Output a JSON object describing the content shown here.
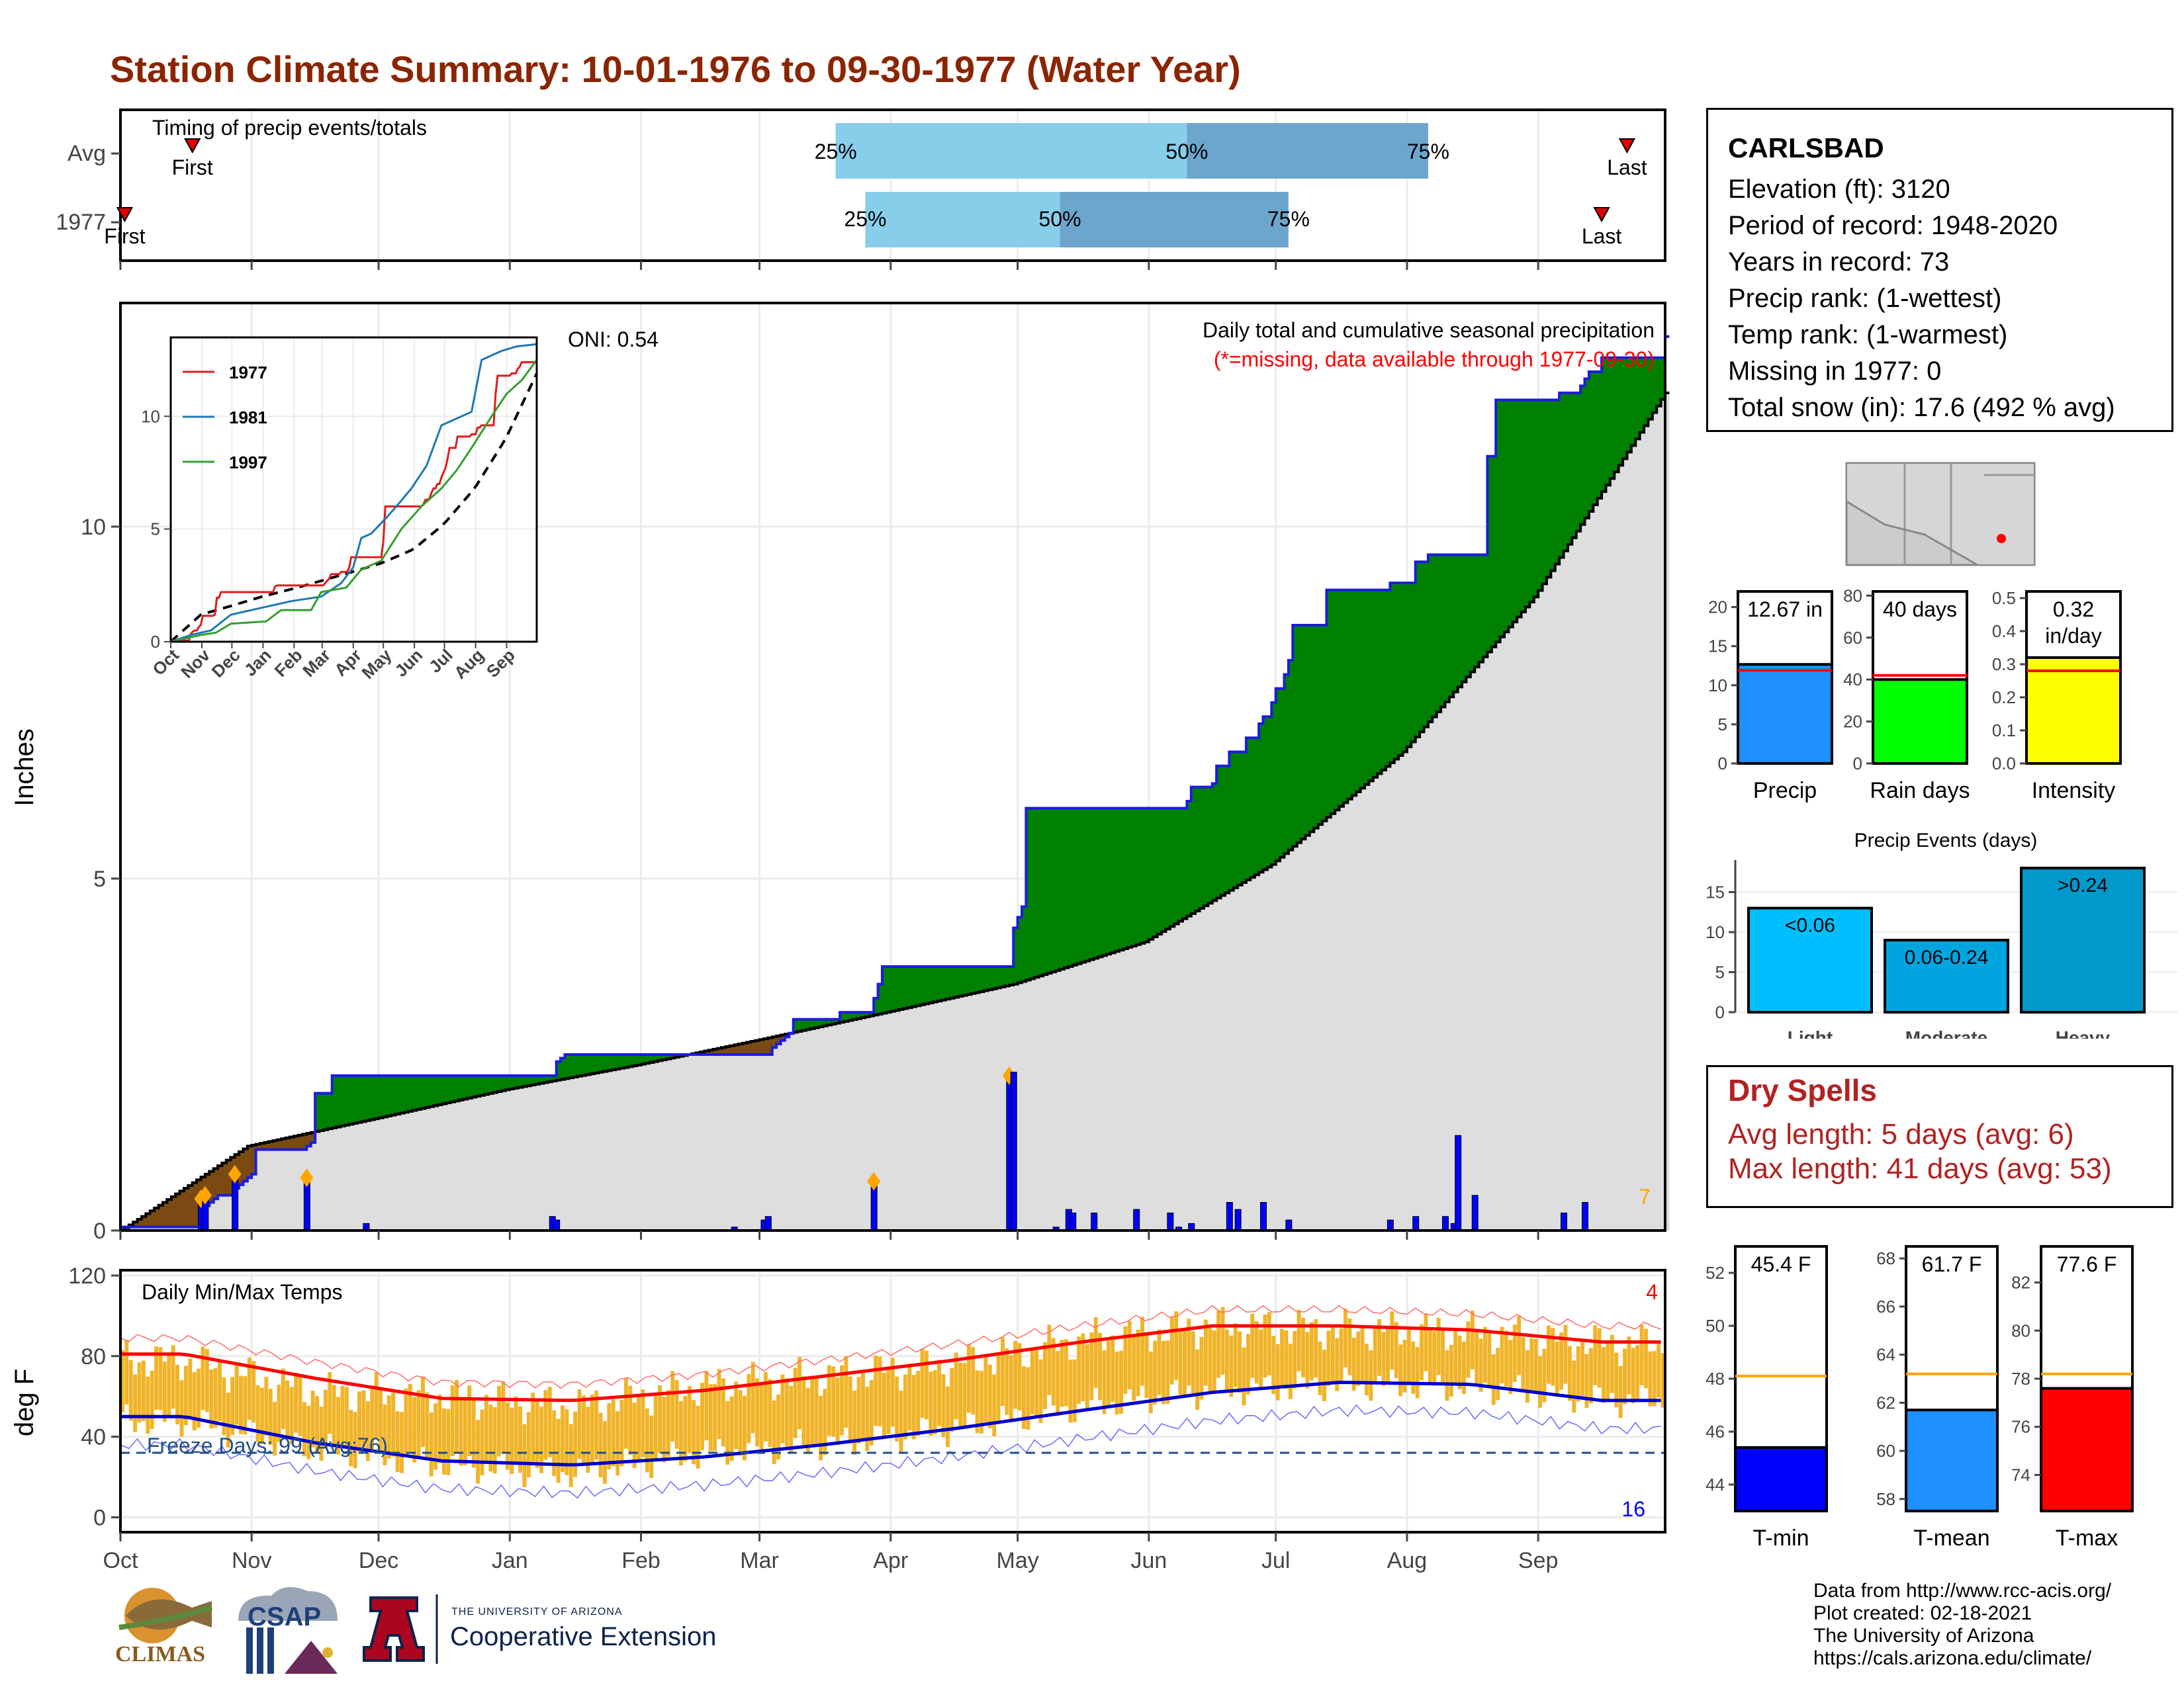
{
  "title": "Station Climate Summary: 10-01-1976 to 09-30-1977 (Water Year)",
  "timing": {
    "heading": "Timing of precip events/totals",
    "rows": [
      "Avg",
      "1977"
    ],
    "avg": {
      "first_label": "First",
      "last_label": "Last",
      "first_day": 17,
      "last_day": 356,
      "p25_day": 169,
      "p50_day": 252,
      "p75_day": 309
    },
    "year": {
      "first_label": "First",
      "last_label": "Last",
      "first_day": 1,
      "last_day": 350,
      "p25_day": 176,
      "p50_day": 222,
      "p75_day": 276
    },
    "pct_labels": [
      "25%",
      "50%",
      "75%"
    ]
  },
  "station": {
    "name": "CARLSBAD",
    "lines": [
      "Elevation (ft): 3120",
      "Period of record: 1948-2020",
      "Years in record: 73",
      "Precip rank:  (1-wettest)",
      "Temp rank:  (1-warmest)",
      "Missing in 1977: 0",
      "Total snow (in): 17.6 (492 % avg)"
    ]
  },
  "main": {
    "annotation_title": "Daily total and cumulative seasonal precipitation",
    "annotation_note": "(*=missing, data available through 1977-09-30)",
    "oni": "ONI: 0.54",
    "ylabel": "Inches",
    "corner_count": "7",
    "yticks": [
      "0",
      "5",
      "10"
    ]
  },
  "inset": {
    "legend": [
      "1977",
      "1981",
      "1997"
    ],
    "colors": [
      "#e31a1c",
      "#1f78b4",
      "#33a02c"
    ],
    "yticks": [
      "0",
      "5",
      "10"
    ],
    "xticks": [
      "Oct",
      "Nov",
      "Dec",
      "Jan",
      "Feb",
      "Mar",
      "Apr",
      "May",
      "Jun",
      "Jul",
      "Aug",
      "Sep"
    ]
  },
  "temps": {
    "heading": "Daily Min/Max Temps",
    "ylabel": "deg F",
    "freeze_label": "Freeze Days: 99 (Avg:76)",
    "hot_count": "4",
    "cold_count": "16",
    "yticks": [
      "0",
      "40",
      "80",
      "120"
    ]
  },
  "months": [
    "Oct",
    "Nov",
    "Dec",
    "Jan",
    "Feb",
    "Mar",
    "Apr",
    "May",
    "Jun",
    "Jul",
    "Aug",
    "Sep"
  ],
  "bars": {
    "precip": {
      "label": "Precip",
      "value_label": "12.67 in",
      "value": 12.67,
      "avg": 11.9,
      "ymax": 22,
      "yticks": [
        "0",
        "5",
        "10",
        "15",
        "20"
      ],
      "color": "#1E90FF"
    },
    "raindays": {
      "label": "Rain days",
      "value_label": "40 days",
      "value": 40,
      "avg": 42,
      "ymax": 82,
      "yticks": [
        "0",
        "20",
        "40",
        "60",
        "80"
      ],
      "color": "#00FF00"
    },
    "intensity": {
      "label": "Intensity",
      "value_label": "0.32",
      "value_label2": "in/day",
      "value": 0.32,
      "avg": 0.28,
      "ymax": 0.52,
      "yticks": [
        "0.0",
        "0.1",
        "0.2",
        "0.3",
        "0.4",
        "0.5"
      ],
      "color": "#FFFF00"
    }
  },
  "events": {
    "title": "Precip Events (days)",
    "categories": [
      "Light",
      "Moderate",
      "Heavy"
    ],
    "labels": [
      "<0.06",
      "0.06-0.24",
      ">0.24"
    ],
    "values": [
      13,
      9,
      18
    ],
    "colors": [
      "#00BFFF",
      "#00A5E0",
      "#0099CC"
    ],
    "yticks": [
      "0",
      "5",
      "10",
      "15"
    ]
  },
  "dry": {
    "title": "Dry Spells",
    "lines": [
      "Avg length: 5 days (avg: 6)",
      "Max length: 41 days (avg: 53)"
    ]
  },
  "tbars": {
    "tmin": {
      "label": "T-min",
      "value_label": "45.4 F",
      "value": 45.4,
      "avg": 48.1,
      "ymin": 43,
      "ymax": 53,
      "yticks": [
        "44",
        "46",
        "48",
        "50",
        "52"
      ],
      "color": "#0000FF"
    },
    "tmean": {
      "label": "T-mean",
      "value_label": "61.7 F",
      "value": 61.7,
      "avg": 63.2,
      "ymin": 57.5,
      "ymax": 68.5,
      "yticks": [
        "58",
        "60",
        "62",
        "64",
        "66",
        "68"
      ],
      "color": "#1E90FF"
    },
    "tmax": {
      "label": "T-max",
      "value_label": "77.6 F",
      "value": 77.6,
      "avg": 78.2,
      "ymin": 72.5,
      "ymax": 83.5,
      "yticks": [
        "74",
        "76",
        "78",
        "80",
        "82"
      ],
      "color": "#FF0000"
    }
  },
  "chart_data": [
    {
      "type": "area",
      "title": "Daily total and cumulative seasonal precipitation",
      "ylabel": "Inches",
      "ylim": [
        0,
        12.5
      ],
      "series": [
        {
          "name": "1977",
          "x": [
            0,
            17,
            19,
            20,
            21,
            22,
            23,
            27,
            28,
            29,
            30,
            31,
            32,
            43,
            44,
            45,
            46,
            50,
            58,
            59,
            60,
            61,
            62,
            64,
            65,
            66,
            102,
            103,
            104,
            105,
            106,
            107,
            108,
            115,
            145,
            152,
            154,
            155,
            156,
            157,
            158,
            159,
            160,
            170,
            178,
            179,
            180,
            210,
            211,
            212,
            213,
            214,
            220,
            221,
            225,
            226,
            230,
            240,
            248,
            252,
            253,
            258,
            259,
            262,
            264,
            265,
            266,
            267,
            268,
            269,
            270,
            272,
            273,
            275,
            276,
            277,
            285,
            300,
            306,
            309,
            311,
            313,
            320,
            322,
            323,
            325,
            326,
            330,
            340,
            345,
            346,
            347,
            350,
            365
          ],
          "values": [
            0.05,
            0.05,
            0.3,
            0.35,
            0.4,
            0.45,
            0.5,
            0.6,
            0.65,
            0.7,
            0.75,
            0.8,
            1.15,
            1.15,
            1.2,
            1.25,
            1.95,
            2.2,
            2.2,
            2.2,
            2.2,
            2.2,
            2.2,
            2.2,
            2.2,
            2.2,
            2.2,
            2.4,
            2.45,
            2.5,
            2.5,
            2.5,
            2.5,
            2.5,
            2.5,
            2.5,
            2.6,
            2.65,
            2.7,
            2.75,
            2.8,
            3.0,
            3.0,
            3.1,
            3.3,
            3.5,
            3.75,
            3.75,
            4.3,
            4.45,
            4.6,
            6.0,
            6.0,
            6.0,
            6.0,
            6.0,
            6.0,
            6.0,
            6.0,
            6.1,
            6.3,
            6.35,
            6.6,
            6.8,
            6.8,
            6.8,
            7.0,
            7.0,
            7.0,
            7.2,
            7.3,
            7.5,
            7.7,
            7.9,
            8.1,
            8.6,
            9.1,
            9.2,
            9.5,
            9.6,
            9.6,
            9.6,
            9.6,
            9.6,
            11.0,
            11.8,
            11.8,
            11.8,
            11.9,
            12.0,
            12.1,
            12.2,
            12.4,
            12.7
          ]
        },
        {
          "name": "Avg",
          "x": [
            0,
            30,
            61,
            91,
            122,
            150,
            181,
            211,
            242,
            272,
            303,
            334,
            365
          ],
          "values": [
            0.0,
            1.2,
            1.6,
            2.0,
            2.35,
            2.7,
            3.1,
            3.5,
            4.1,
            5.2,
            6.8,
            9.0,
            11.9
          ]
        }
      ],
      "daily_precip": [
        [
          19,
          0.45
        ],
        [
          20,
          0.5
        ],
        [
          27,
          0.8
        ],
        [
          44,
          0.75
        ],
        [
          58,
          0.1
        ],
        [
          102,
          0.2
        ],
        [
          103,
          0.15
        ],
        [
          145,
          0.05
        ],
        [
          152,
          0.15
        ],
        [
          153,
          0.2
        ],
        [
          178,
          0.7
        ],
        [
          210,
          2.2
        ],
        [
          211,
          2.25
        ],
        [
          221,
          0.05
        ],
        [
          224,
          0.3
        ],
        [
          225,
          0.25
        ],
        [
          230,
          0.25
        ],
        [
          240,
          0.3
        ],
        [
          248,
          0.25
        ],
        [
          250,
          0.05
        ],
        [
          253,
          0.1
        ],
        [
          262,
          0.4
        ],
        [
          264,
          0.3
        ],
        [
          270,
          0.4
        ],
        [
          276,
          0.15
        ],
        [
          300,
          0.15
        ],
        [
          306,
          0.2
        ],
        [
          313,
          0.2
        ],
        [
          315,
          0.1
        ],
        [
          316,
          1.35
        ],
        [
          320,
          0.5
        ],
        [
          341,
          0.25
        ],
        [
          346,
          0.4
        ]
      ]
    },
    {
      "type": "line",
      "title": "Daily Min/Max Temps",
      "ylabel": "deg F",
      "ylim": [
        -10,
        120
      ],
      "categories": [
        "Oct",
        "Nov",
        "Dec",
        "Jan",
        "Feb",
        "Mar",
        "Apr",
        "May",
        "Jun",
        "Jul",
        "Aug",
        "Sep"
      ],
      "series": [
        {
          "name": "avg max",
          "values": [
            81,
            69,
            59,
            58,
            63,
            70,
            78,
            87,
            95,
            95,
            93,
            87
          ]
        },
        {
          "name": "avg min",
          "values": [
            50,
            37,
            28,
            26,
            30,
            36,
            44,
            53,
            62,
            67,
            66,
            58
          ]
        },
        {
          "name": "1977 max",
          "values": [
            78,
            62,
            60,
            55,
            65,
            70,
            76,
            88,
            95,
            93,
            92,
            86
          ]
        },
        {
          "name": "1977 min",
          "values": [
            48,
            34,
            26,
            22,
            32,
            36,
            44,
            55,
            63,
            66,
            65,
            58
          ]
        }
      ],
      "freeze_threshold": 32
    }
  ]
}
